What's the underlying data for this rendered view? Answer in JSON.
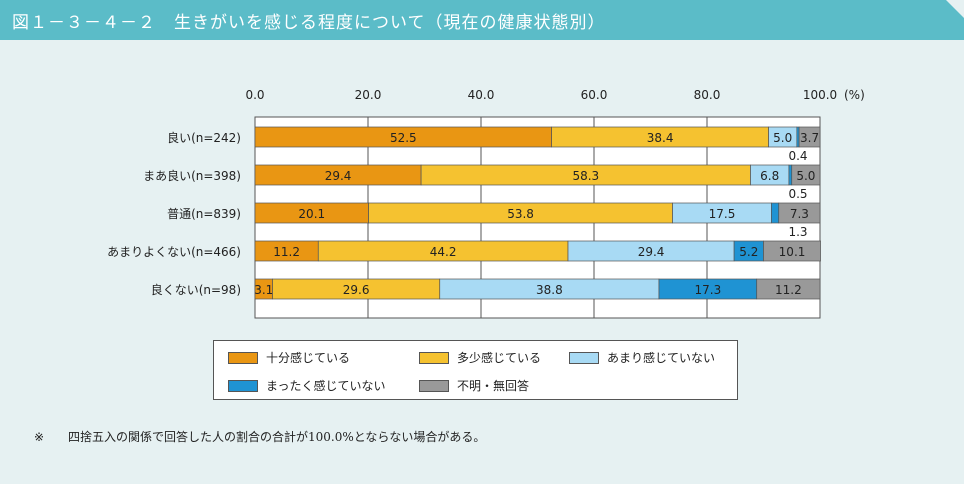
{
  "title": "図１－３－４－２　生きがいを感じる程度について（現在の健康状態別）",
  "colors": {
    "header": "#5bbcc8",
    "series": [
      "#e99613",
      "#f5c230",
      "#a8daf4",
      "#1f93d3",
      "#999999"
    ]
  },
  "chart_data": {
    "type": "bar",
    "orientation": "horizontal",
    "stacked": true,
    "xlim": [
      0,
      100
    ],
    "x_ticks": [
      "0.0",
      "20.0",
      "40.0",
      "60.0",
      "80.0",
      "100.0"
    ],
    "x_unit": "(%)",
    "categories": [
      "良い(n=242)",
      "まあ良い(n=398)",
      "普通(n=839)",
      "あまりよくない(n=466)",
      "良くない(n=98)"
    ],
    "series": [
      {
        "name": "十分感じている",
        "values": [
          52.5,
          29.4,
          20.1,
          11.2,
          3.1
        ]
      },
      {
        "name": "多少感じている",
        "values": [
          38.4,
          58.3,
          53.8,
          44.2,
          29.6
        ]
      },
      {
        "name": "あまり感じていない",
        "values": [
          5.0,
          6.8,
          17.5,
          29.4,
          38.8
        ]
      },
      {
        "name": "まったく感じていない",
        "values": [
          0.4,
          0.5,
          1.3,
          5.2,
          17.3
        ]
      },
      {
        "name": "不明・無回答",
        "values": [
          3.7,
          5.0,
          7.3,
          10.1,
          11.2
        ]
      }
    ],
    "data_labels": [
      [
        "52.5",
        "38.4",
        "5.0",
        "0.4",
        "3.7"
      ],
      [
        "29.4",
        "58.3",
        "6.8",
        "0.5",
        "5.0"
      ],
      [
        "20.1",
        "53.8",
        "17.5",
        "1.3",
        "7.3"
      ],
      [
        "11.2",
        "44.2",
        "29.4",
        "5.2",
        "10.1"
      ],
      [
        "3.1",
        "29.6",
        "38.8",
        "17.3",
        "11.2"
      ]
    ],
    "grid": true,
    "legend_position": "bottom"
  },
  "footnote": {
    "mark": "※",
    "text": "四捨五入の関係で回答した人の割合の合計が100.0%とならない場合がある。"
  }
}
